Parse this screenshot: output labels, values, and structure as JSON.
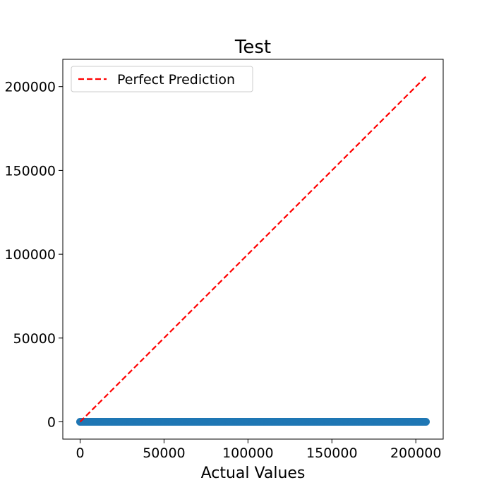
{
  "chart_data": {
    "type": "scatter",
    "title": "Test",
    "xlabel": "Actual Values",
    "ylabel": "",
    "xlim": [
      -10300,
      216300
    ],
    "ylim": [
      -10300,
      216300
    ],
    "x_ticks": [
      0,
      50000,
      100000,
      150000,
      200000
    ],
    "y_ticks": [
      0,
      50000,
      100000,
      150000,
      200000
    ],
    "x_tick_labels": [
      "0",
      "50000",
      "100000",
      "150000",
      "200000"
    ],
    "y_tick_labels": [
      "0",
      "50000",
      "100000",
      "150000",
      "200000"
    ],
    "grid": false,
    "legend": {
      "placement": "top-left",
      "entries": [
        {
          "label": "Perfect Prediction",
          "style": "dashed",
          "color": "#ff0000"
        }
      ]
    },
    "series": [
      {
        "kind": "scatter",
        "color": "#1f77b4",
        "x_range": [
          0,
          206000
        ],
        "y": 0,
        "point_count": 400
      }
    ],
    "reference_line": {
      "kind": "line",
      "color": "#ff0000",
      "style": "dashed",
      "x": [
        0,
        206000
      ],
      "y": [
        0,
        206000
      ]
    }
  }
}
